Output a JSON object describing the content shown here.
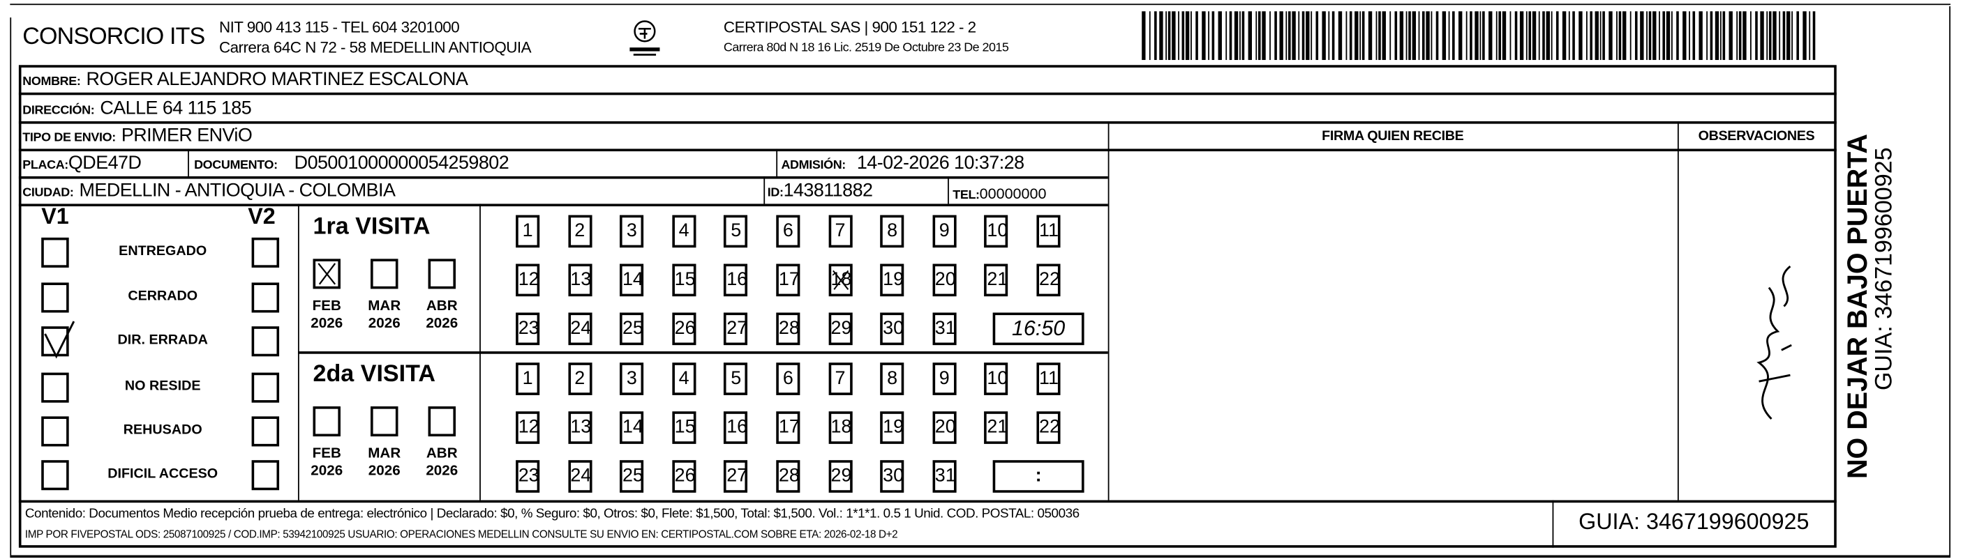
{
  "header": {
    "company": "CONSORCIO ITS",
    "company_nit": "NIT 900 413 115 - TEL 604 3201000",
    "company_address": "Carrera 64C N 72 - 58 MEDELLIN ANTIOQUIA",
    "logo_text": "CERTIPOSTAL",
    "carrier": "CERTIPOSTAL SAS | 900 151 122 - 2",
    "carrier_address": "Carrera 80d N 18 16  Lic. 2519 De Octubre 23 De 2015"
  },
  "recipient": {
    "nombre_label": "NOMBRE:",
    "nombre": "ROGER ALEJANDRO MARTINEZ ESCALONA",
    "direccion_label": "DIRECCIÓN:",
    "direccion": "CALLE 64 115 185",
    "tipo_label": "TIPO DE ENVIO:",
    "tipo": "PRIMER ENViO",
    "placa_label": "PLACA:",
    "placa": "QDE47D",
    "documento_label": "DOCUMENTO:",
    "documento": "D05001000000054259802",
    "admision_label": "ADMISIÓN:",
    "admision": "14-02-2026 10:37:28",
    "ciudad_label": "CIUDAD:",
    "ciudad": "MEDELLIN - ANTIOQUIA - COLOMBIA",
    "id_label": "ID:",
    "id": "143811882",
    "tel_label": "TEL:",
    "tel": "00000000"
  },
  "firma_label": "FIRMA QUIEN RECIBE",
  "observaciones_label": "OBSERVACIONES",
  "status": {
    "v1_label": "V1",
    "v2_label": "V2",
    "items": [
      {
        "label": "ENTREGADO",
        "v1": false,
        "v2": false
      },
      {
        "label": "CERRADO",
        "v1": false,
        "v2": false
      },
      {
        "label": "DIR. ERRADA",
        "v1": true,
        "v2": false
      },
      {
        "label": "NO RESIDE",
        "v1": false,
        "v2": false
      },
      {
        "label": "REHUSADO",
        "v1": false,
        "v2": false
      },
      {
        "label": "DIFICIL ACCESO",
        "v1": false,
        "v2": false
      }
    ]
  },
  "visits": [
    {
      "title": "1ra VISITA",
      "months": [
        {
          "m": "FEB",
          "y": "2026",
          "checked": true
        },
        {
          "m": "MAR",
          "y": "2026",
          "checked": false
        },
        {
          "m": "ABR",
          "y": "2026",
          "checked": false
        }
      ],
      "checked_day": 18,
      "time": "16:50"
    },
    {
      "title": "2da VISITA",
      "months": [
        {
          "m": "FEB",
          "y": "2026",
          "checked": false
        },
        {
          "m": "MAR",
          "y": "2026",
          "checked": false
        },
        {
          "m": "ABR",
          "y": "2026",
          "checked": false
        }
      ],
      "checked_day": null,
      "time": ":"
    }
  ],
  "days": [
    1,
    2,
    3,
    4,
    5,
    6,
    7,
    8,
    9,
    10,
    11,
    12,
    13,
    14,
    15,
    16,
    17,
    18,
    19,
    20,
    21,
    22,
    23,
    24,
    25,
    26,
    27,
    28,
    29,
    30,
    31
  ],
  "side": {
    "warning": "NO DEJAR BAJO PUERTA",
    "guia": "GUIA: 3467199600925"
  },
  "footer": {
    "line1": "Contenido: Documentos Medio recepción prueba de entrega: electrónico | Declarado: $0, % Seguro: $0, Otros: $0, Flete: $1,500, Total: $1,500. Vol.: 1*1*1. 0.5  1 Unid. COD. POSTAL: 050036",
    "line2": "IMP POR FIVEPOSTAL ODS: 25087100925 / COD.IMP: 53942100925 USUARIO: OPERACIONES MEDELLIN CONSULTE SU ENVIO EN: CERTIPOSTAL.COM SOBRE ETA: 2026-02-18 D+2",
    "guia": "GUIA: 3467199600925"
  }
}
